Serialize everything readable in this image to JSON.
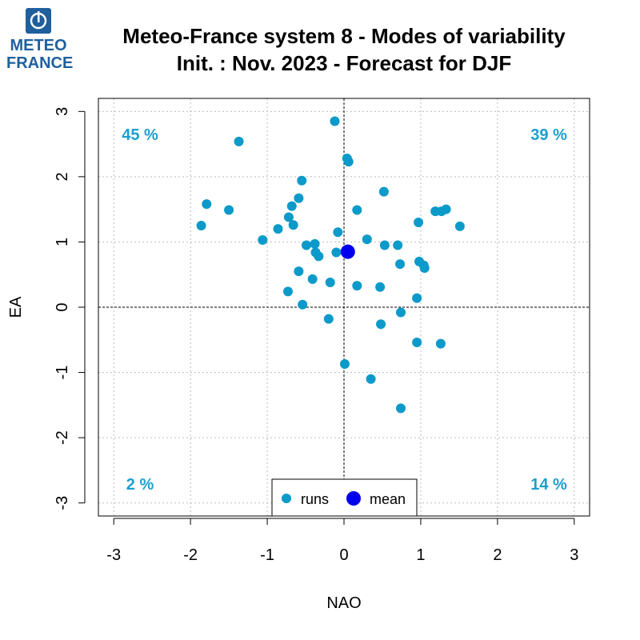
{
  "logo": {
    "line1": "METEO",
    "line2": "FRANCE"
  },
  "chart_data": {
    "type": "scatter",
    "title": "Meteo-France system 8 - Modes of variability",
    "subtitle": "Init. : Nov. 2023 - Forecast for DJF",
    "xlabel": "NAO",
    "ylabel": "EA",
    "xlim": [
      -3.2,
      3.2
    ],
    "ylim": [
      -3.2,
      3.2
    ],
    "xticks": [
      -3,
      -2,
      -1,
      0,
      1,
      2,
      3
    ],
    "yticks": [
      -3,
      -2,
      -1,
      0,
      1,
      2,
      3
    ],
    "grid": true,
    "quadrants": {
      "top_left": "45 %",
      "top_right": "39 %",
      "bottom_left": "2 %",
      "bottom_right": "14 %"
    },
    "legend": {
      "position": "bottom-center",
      "runs": "runs",
      "mean": "mean"
    },
    "colors": {
      "runs": "#0b9ac9",
      "mean": "#0000ee",
      "quadrant_text": "#1c9fcf"
    },
    "series": [
      {
        "name": "runs",
        "points": [
          [
            -0.12,
            2.85
          ],
          [
            -1.37,
            2.54
          ],
          [
            0.04,
            2.28
          ],
          [
            0.06,
            2.23
          ],
          [
            -0.55,
            1.94
          ],
          [
            0.52,
            1.77
          ],
          [
            -0.59,
            1.67
          ],
          [
            -1.79,
            1.58
          ],
          [
            -0.68,
            1.55
          ],
          [
            -1.5,
            1.49
          ],
          [
            0.17,
            1.49
          ],
          [
            1.33,
            1.5
          ],
          [
            1.19,
            1.47
          ],
          [
            1.27,
            1.47
          ],
          [
            -0.72,
            1.38
          ],
          [
            0.97,
            1.3
          ],
          [
            -1.86,
            1.25
          ],
          [
            -0.66,
            1.26
          ],
          [
            1.51,
            1.24
          ],
          [
            -0.86,
            1.2
          ],
          [
            -0.08,
            1.15
          ],
          [
            -1.06,
            1.03
          ],
          [
            0.3,
            1.04
          ],
          [
            -0.49,
            0.95
          ],
          [
            -0.38,
            0.97
          ],
          [
            0.53,
            0.95
          ],
          [
            0.7,
            0.95
          ],
          [
            -0.37,
            0.84
          ],
          [
            -0.1,
            0.84
          ],
          [
            -0.33,
            0.78
          ],
          [
            0.98,
            0.7
          ],
          [
            0.73,
            0.66
          ],
          [
            1.04,
            0.64
          ],
          [
            1.05,
            0.6
          ],
          [
            -0.59,
            0.55
          ],
          [
            -0.41,
            0.43
          ],
          [
            -0.18,
            0.38
          ],
          [
            0.17,
            0.33
          ],
          [
            0.47,
            0.31
          ],
          [
            -0.73,
            0.24
          ],
          [
            0.95,
            0.14
          ],
          [
            -0.54,
            0.04
          ],
          [
            0.74,
            -0.08
          ],
          [
            -0.2,
            -0.18
          ],
          [
            0.48,
            -0.26
          ],
          [
            0.95,
            -0.54
          ],
          [
            1.26,
            -0.56
          ],
          [
            0.01,
            -0.87
          ],
          [
            0.35,
            -1.1
          ],
          [
            0.74,
            -1.55
          ]
        ]
      },
      {
        "name": "mean",
        "points": [
          [
            0.05,
            0.85
          ]
        ]
      }
    ]
  }
}
